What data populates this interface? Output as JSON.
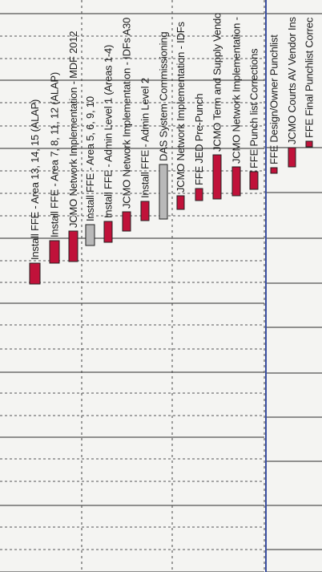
{
  "tasks": [
    {
      "label": "Install FFE - Area 13, 14, 15 (ALAP)",
      "color": "#c0123a"
    },
    {
      "label": "Install FFE - Area 7, 8, 11, 12 (ALAP)",
      "color": "#c0123a"
    },
    {
      "label": "JCMO Network Implementation - MDF 2012",
      "color": "#c0123a"
    },
    {
      "label": "Install FFE - Area 5, 6, 9, 10",
      "color": "#b9b9b9"
    },
    {
      "label": "Install FFE - Admin Level 1 (Areas 1-4)",
      "color": "#c0123a"
    },
    {
      "label": "JCMO Network Implementation - IDFs A30",
      "color": "#c0123a"
    },
    {
      "label": "Install FFE - Admin Level 2",
      "color": "#c0123a"
    },
    {
      "label": "DAS System Commissioning",
      "color": "#b9b9b9"
    },
    {
      "label": "JCMO Network Implementation - IDFs",
      "color": "#c0123a"
    },
    {
      "label": "FFE JED Pre-Punch",
      "color": "#c0123a"
    },
    {
      "label": "JCMO Term and Supply Vendo",
      "color": "#c0123a"
    },
    {
      "label": "JCMO Network Implementation -",
      "color": "#c0123a"
    },
    {
      "label": "FFE Punch list Corrections",
      "color": "#c0123a"
    },
    {
      "label": "FFE Design/Owner Punchlist",
      "color": "#c0123a"
    },
    {
      "label": "JCMO Courts AV Vendor Ins",
      "color": "#c0123a"
    },
    {
      "label": "FFE Final Punchlist Correc",
      "color": "#c0123a"
    }
  ]
}
